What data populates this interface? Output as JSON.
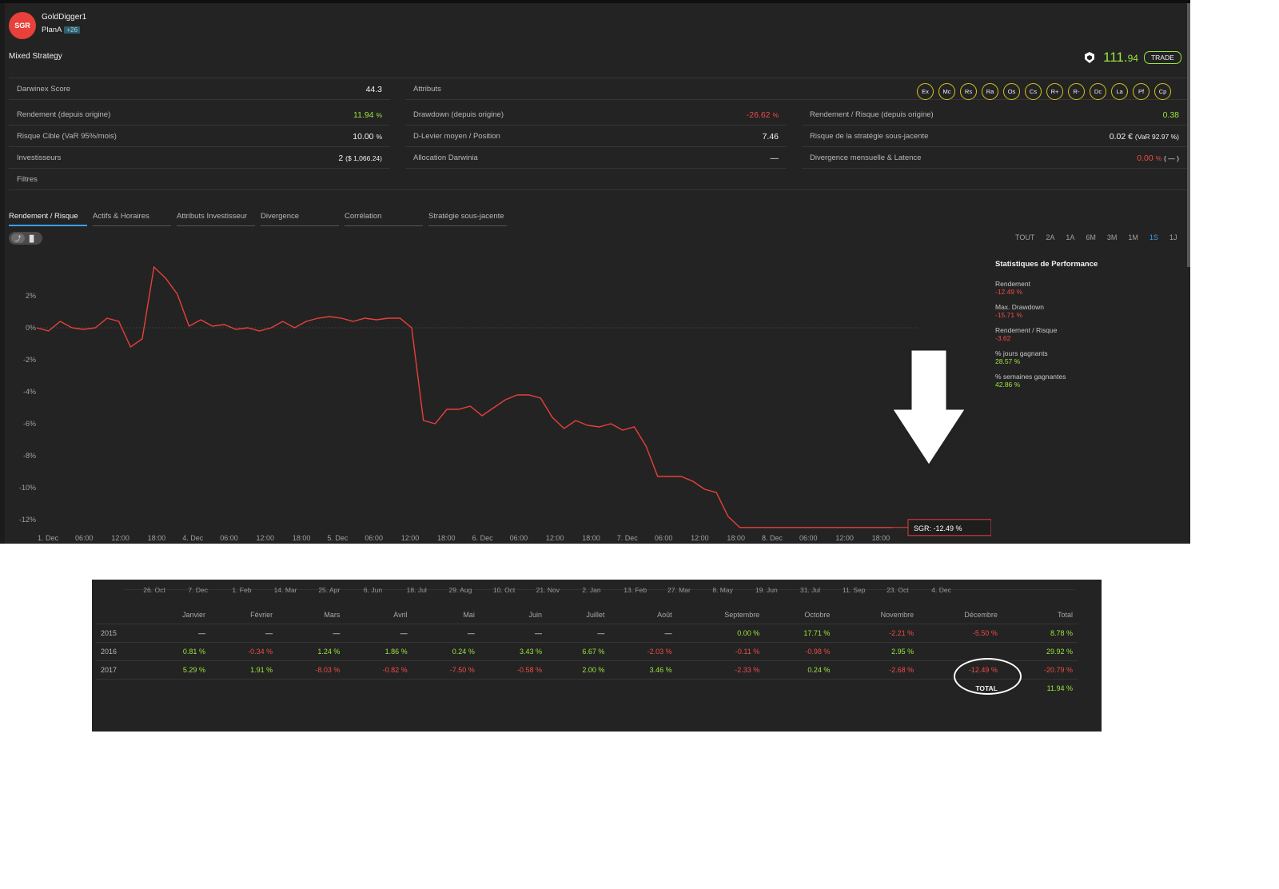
{
  "profile": {
    "avatar_text": "SGR",
    "username": "GoldDigger1",
    "plan": "PlanA",
    "plan_badge": "+26",
    "strategy": "Mixed Strategy"
  },
  "quote": {
    "price_main": "111.",
    "price_decimals": "94",
    "trade_label": "TRADE"
  },
  "stats": {
    "score_label": "Darwinex Score",
    "score_value": "44.3",
    "attributes_label": "Attributs",
    "attributes": [
      "Ex",
      "Mc",
      "Rs",
      "Ra",
      "Os",
      "Cs",
      "R+",
      "R-",
      "Dc",
      "La",
      "Pf",
      "Cp"
    ],
    "return_label": "Rendement (depuis origine)",
    "return_value": "11.94",
    "return_unit": "%",
    "drawdown_label": "Drawdown (depuis origine)",
    "drawdown_value": "-26.62",
    "drawdown_unit": "%",
    "rr_label": "Rendement / Risque (depuis origine)",
    "rr_value": "0.38",
    "risk_label": "Risque Cible (VaR 95%/mois)",
    "risk_value": "10.00",
    "risk_unit": "%",
    "leverage_label": "D-Levier moyen / Position",
    "leverage_value": "7.46",
    "underlying_label": "Risque de la stratégie sous-jacente",
    "underlying_value": "0.02 €",
    "underlying_extra": "(VaR 92.97 %)",
    "investors_label": "Investisseurs",
    "investors_value": "2",
    "investors_extra": "($ 1,066.24)",
    "allocation_label": "Allocation Darwinia",
    "allocation_value": "—",
    "divergence_label": "Divergence mensuelle & Latence",
    "divergence_value": "0.00",
    "divergence_unit": "%",
    "divergence_extra": "( — )",
    "filters_label": "Filtres"
  },
  "tabs": [
    "Rendement / Risque",
    "Actifs & Horaires",
    "Attributs Investisseur",
    "Divergence",
    "Corrélation",
    "Stratégie sous-jacente"
  ],
  "ranges": [
    "TOUT",
    "2A",
    "1A",
    "6M",
    "3M",
    "1M",
    "1S",
    "1J"
  ],
  "active_range": "1S",
  "performance": {
    "title": "Statistiques de Performance",
    "items": [
      {
        "label": "Rendement",
        "value": "-12.49 %",
        "tone": "r"
      },
      {
        "label": "Max. Drawdown",
        "value": "-15.71 %",
        "tone": "r"
      },
      {
        "label": "Rendement / Risque",
        "value": "-3.62",
        "tone": "r"
      },
      {
        "label": "% jours gagnants",
        "value": "28.57 %",
        "tone": "g"
      },
      {
        "label": "% semaines gagnantes",
        "value": "42.86 %",
        "tone": "g"
      }
    ]
  },
  "chart_data": {
    "type": "line",
    "ylim": [
      -13.5,
      4.5
    ],
    "y_ticks": [
      2,
      0,
      -2,
      -4,
      -6,
      -8,
      -10,
      -12
    ],
    "y_tick_labels": [
      "2%",
      "0%",
      "-2%",
      "-4%",
      "-6%",
      "-8%",
      "-10%",
      "-12%"
    ],
    "x_tick_labels": [
      "1. Dec",
      "06:00",
      "12:00",
      "18:00",
      "4. Dec",
      "06:00",
      "12:00",
      "18:00",
      "5. Dec",
      "06:00",
      "12:00",
      "18:00",
      "6. Dec",
      "06:00",
      "12:00",
      "18:00",
      "7. Dec",
      "06:00",
      "12:00",
      "18:00",
      "8. Dec",
      "06:00",
      "12:00",
      "18:00"
    ],
    "series": [
      {
        "values": [
          0,
          -0.2,
          0.4,
          0,
          -0.1,
          0,
          0.6,
          0.4,
          -1.2,
          -0.7,
          3.8,
          3.1,
          2.1,
          0.1,
          0.5,
          0.1,
          0.2,
          -0.1,
          0,
          -0.2,
          0,
          0.4,
          0,
          0.4,
          0.6,
          0.7,
          0.6,
          0.4,
          0.6,
          0.5,
          0.6,
          0.6,
          0,
          -5.8,
          -6,
          -5.1,
          -5.1,
          -4.9,
          -5.5,
          -5,
          -4.5,
          -4.2,
          -4.2,
          -4.4,
          -5.6,
          -6.3,
          -5.8,
          -6.1,
          -6.2,
          -6,
          -6.4,
          -6.2,
          -7.4,
          -9.3,
          -9.3,
          -9.3,
          -9.6,
          -10.1,
          -10.3,
          -11.8,
          -12.49,
          -12.49,
          -12.49,
          -12.49,
          -12.49,
          -12.49,
          -12.49,
          -12.49,
          -12.49,
          -12.49,
          -12.49,
          -12.49,
          -12.49,
          -12.49
        ]
      }
    ],
    "series_label_text": "SGR: -12.49 %",
    "line_color": "#e8403a"
  },
  "monthly": {
    "timeline": [
      "26. Oct",
      "7. Dec",
      "1. Feb",
      "14. Mar",
      "25. Apr",
      "6. Jun",
      "18. Jul",
      "29. Aug",
      "10. Oct",
      "21. Nov",
      "2. Jan",
      "13. Feb",
      "27. Mar",
      "8. May",
      "19. Jun",
      "31. Jul",
      "11. Sep",
      "23. Oct",
      "4. Dec"
    ],
    "headers": [
      "",
      "Janvier",
      "Février",
      "Mars",
      "Avril",
      "Mai",
      "Juin",
      "Juillet",
      "Août",
      "Septembre",
      "Octobre",
      "Novembre",
      "Décembre",
      "Total"
    ],
    "rows": [
      {
        "year": "2015",
        "cells": [
          [
            "—",
            "n"
          ],
          [
            "—",
            "n"
          ],
          [
            "—",
            "n"
          ],
          [
            "—",
            "n"
          ],
          [
            "—",
            "n"
          ],
          [
            "—",
            "n"
          ],
          [
            "—",
            "n"
          ],
          [
            "—",
            "n"
          ],
          [
            "0.00 %",
            "g"
          ],
          [
            "17.71 %",
            "g"
          ],
          [
            "-2.21 %",
            "r"
          ],
          [
            "-5.50 %",
            "r"
          ],
          [
            "8.78 %",
            "g"
          ]
        ]
      },
      {
        "year": "2016",
        "cells": [
          [
            "0.81 %",
            "g"
          ],
          [
            "-0.34 %",
            "r"
          ],
          [
            "1.24 %",
            "g"
          ],
          [
            "1.86 %",
            "g"
          ],
          [
            "0.24 %",
            "g"
          ],
          [
            "3.43 %",
            "g"
          ],
          [
            "6.67 %",
            "g"
          ],
          [
            "-2.03 %",
            "r"
          ],
          [
            "-0.11 %",
            "r"
          ],
          [
            "-0.98 %",
            "r"
          ],
          [
            "2.95 %",
            "g"
          ],
          [
            "",
            "g"
          ],
          [
            "29.92 %",
            "g"
          ]
        ]
      },
      {
        "year": "2017",
        "cells": [
          [
            "5.29 %",
            "g"
          ],
          [
            "1.91 %",
            "g"
          ],
          [
            "-8.03 %",
            "r"
          ],
          [
            "-0.82 %",
            "r"
          ],
          [
            "-7.50 %",
            "r"
          ],
          [
            "-0.58 %",
            "r"
          ],
          [
            "2.00 %",
            "g"
          ],
          [
            "3.46 %",
            "g"
          ],
          [
            "-2.33 %",
            "r"
          ],
          [
            "0.24 %",
            "g"
          ],
          [
            "-2.68 %",
            "r"
          ],
          [
            "-12.49 %",
            "r"
          ],
          [
            "-20.79 %",
            "r"
          ]
        ]
      }
    ],
    "total_label": "TOTAL",
    "total_value": "11.94 %"
  }
}
